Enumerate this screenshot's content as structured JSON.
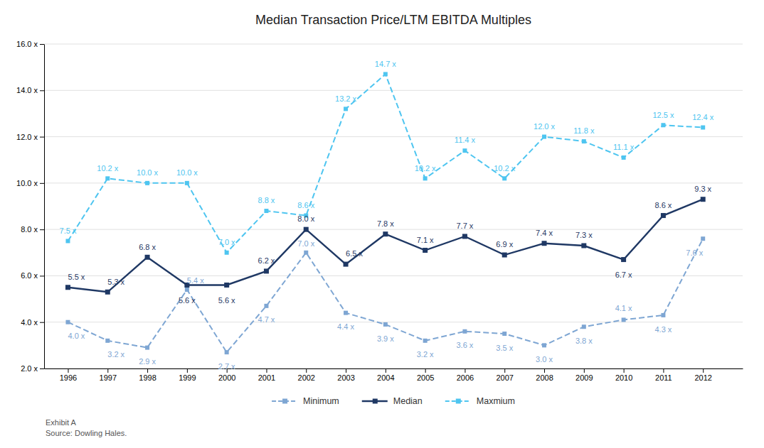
{
  "chart_data": {
    "type": "line",
    "title": "Median Transaction Price/LTM EBITDA Multiples",
    "x": [
      1996,
      1997,
      1998,
      1999,
      2000,
      2001,
      2002,
      2003,
      2004,
      2005,
      2006,
      2007,
      2008,
      2009,
      2010,
      2011,
      2012
    ],
    "series": [
      {
        "name": "Minimum",
        "color": "#7EA6D3",
        "line_style": "dashed",
        "marker": "square",
        "values": [
          4.0,
          3.2,
          2.9,
          5.4,
          2.7,
          4.7,
          7.0,
          4.4,
          3.9,
          3.2,
          3.6,
          3.5,
          3.0,
          3.8,
          4.1,
          4.3,
          7.6
        ],
        "value_labels": [
          "4.0 x",
          "3.2 x",
          "2.9 x",
          "5.4 x",
          "2.7 x",
          "4.7 x",
          "7.0 x",
          "4.4 x",
          "3.9 x",
          "3.2 x",
          "3.6 x",
          "3.5 x",
          "3.0 x",
          "3.8 x",
          "4.1 x",
          "4.3 x",
          "7.6 x"
        ]
      },
      {
        "name": "Median",
        "color": "#1F3864",
        "line_style": "solid",
        "marker": "square",
        "values": [
          5.5,
          5.3,
          6.8,
          5.6,
          5.6,
          6.2,
          8.0,
          6.5,
          7.8,
          7.1,
          7.7,
          6.9,
          7.4,
          7.3,
          6.7,
          8.6,
          9.3
        ],
        "value_labels": [
          "5.5 x",
          "5.3 x",
          "6.8 x",
          "5.6 x",
          "5.6 x",
          "6.2 x",
          "8.0 x",
          "6.5 x",
          "7.8 x",
          "7.1 x",
          "7.7 x",
          "6.9 x",
          "7.4 x",
          "7.3 x",
          "6.7 x",
          "8.6 x",
          "9.3 x"
        ]
      },
      {
        "name": "Maxmium",
        "color": "#4EC5F0",
        "line_style": "dashed",
        "marker": "square",
        "values": [
          7.5,
          10.2,
          10.0,
          10.0,
          7.0,
          8.8,
          8.6,
          13.2,
          14.7,
          10.2,
          11.4,
          10.2,
          12.0,
          11.8,
          11.1,
          12.5,
          12.4
        ],
        "value_labels": [
          "7.5 x",
          "10.2 x",
          "10.0 x",
          "10.0 x",
          "7.0 x",
          "8.8 x",
          "8.6 x",
          "13.2 x",
          "14.7 x",
          "10.2 x",
          "11.4 x",
          "10.2 x",
          "12.0 x",
          "11.8 x",
          "11.1 x",
          "12.5 x",
          "12.4 x"
        ]
      }
    ],
    "xlim": [
      1995.4,
      2013.0
    ],
    "xticks": [
      1996,
      1997,
      1998,
      1999,
      2000,
      2001,
      2002,
      2003,
      2004,
      2005,
      2006,
      2007,
      2008,
      2009,
      2010,
      2011,
      2012
    ],
    "ylim": [
      2.0,
      16.0
    ],
    "yticks": [
      {
        "value": 2.0,
        "label": "2.0 x"
      },
      {
        "value": 4.0,
        "label": "4.0 x"
      },
      {
        "value": 6.0,
        "label": "6.0 x"
      },
      {
        "value": 8.0,
        "label": "8.0 x"
      },
      {
        "value": 10.0,
        "label": "10.0 x"
      },
      {
        "value": 12.0,
        "label": "12.0 x"
      },
      {
        "value": 14.0,
        "label": "14.0 x"
      },
      {
        "value": 16.0,
        "label": "16.0 x"
      }
    ],
    "grid": "y",
    "legend": "bottom",
    "data_labels": true,
    "annotations": [
      "Exhibit A",
      "Source: Dowling Hales."
    ]
  }
}
